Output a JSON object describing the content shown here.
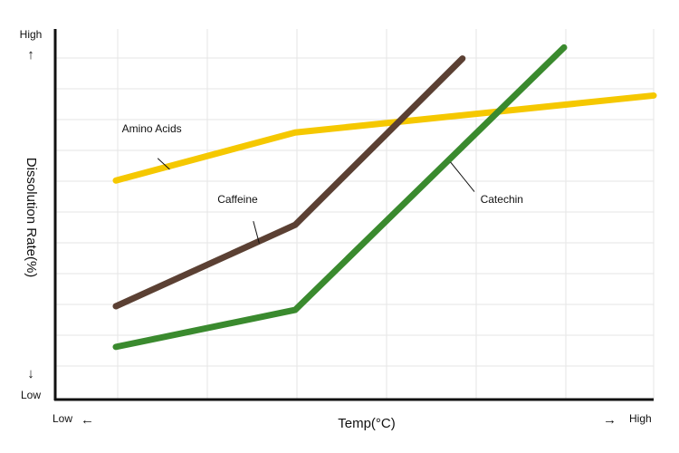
{
  "chart_data": {
    "type": "line",
    "title": "",
    "xlabel": "Temp(°C)",
    "ylabel": "Dissolution Rate(%)",
    "x_tick_labels": {
      "low": "Low",
      "high": "High"
    },
    "y_tick_labels": {
      "low": "Low",
      "high": "High"
    },
    "arrows": {
      "left": "←",
      "right": "→",
      "up": "↑",
      "down": "↓"
    },
    "xlim": [
      0,
      10
    ],
    "ylim": [
      0,
      10
    ],
    "grid": true,
    "legend": "none",
    "series": [
      {
        "name": "Amino Acids",
        "color": "#F5C800",
        "x": [
          1,
          4,
          10
        ],
        "y": [
          5.9,
          7.2,
          8.2
        ]
      },
      {
        "name": "Caffeine",
        "color": "#5B4033",
        "x": [
          1,
          4,
          6.8
        ],
        "y": [
          2.5,
          4.7,
          9.2
        ]
      },
      {
        "name": "Catechin",
        "color": "#3A8A2E",
        "x": [
          1,
          4,
          8.5
        ],
        "y": [
          1.4,
          2.4,
          9.5
        ]
      }
    ]
  }
}
